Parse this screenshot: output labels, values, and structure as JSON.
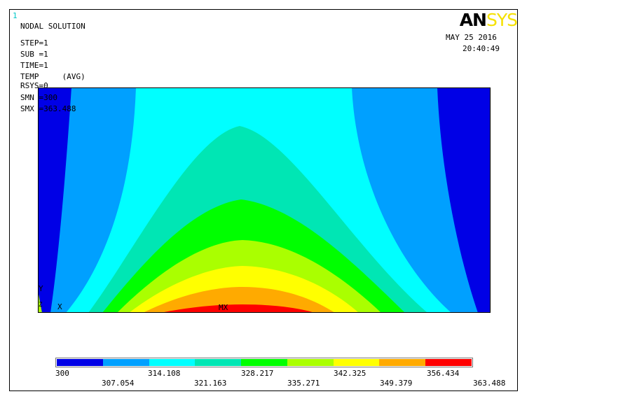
{
  "window_number": "1",
  "logo": {
    "part1": "AN",
    "part2": "SYS"
  },
  "date": "MAY 25 2016",
  "time": "20:40:49",
  "info": {
    "title": "NODAL SOLUTION",
    "step": "STEP=1",
    "sub": "SUB =1",
    "time": "TIME=1",
    "temp": "TEMP     (AVG)",
    "rsys": "RSYS=0",
    "smn": "SMN =300",
    "smx": "SMX =363.488"
  },
  "axis": {
    "y": "Y",
    "z": "Z",
    "x": "X"
  },
  "max_marker": "MX",
  "legend": {
    "colors": [
      "#0000e6",
      "#00a0ff",
      "#00ffff",
      "#00e6b4",
      "#00ff00",
      "#aaff00",
      "#ffff00",
      "#ffaa00",
      "#ff0000"
    ],
    "top_labels": [
      "300",
      "314.108",
      "328.217",
      "342.325",
      "356.434"
    ],
    "bottom_labels": [
      "307.054",
      "321.163",
      "335.271",
      "349.379",
      "363.488"
    ]
  }
}
